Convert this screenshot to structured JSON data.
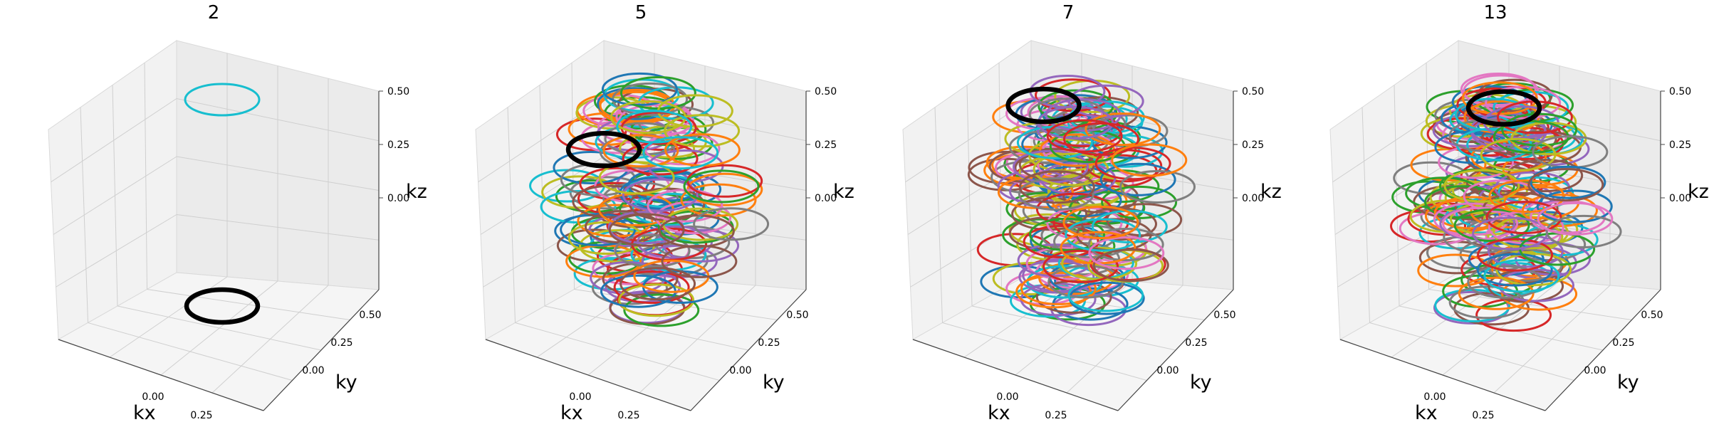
{
  "chart_data": [
    {
      "type": "3d-ring-scatter",
      "title": "2",
      "xlabel": "kx",
      "ylabel": "ky",
      "zlabel": "kz",
      "xticks": [
        "0.00",
        "0.25"
      ],
      "yticks": [
        "0.00",
        "0.25",
        "0.50"
      ],
      "zticks": [
        "0.00",
        "0.25",
        "0.50"
      ],
      "xlim": [
        -0.5,
        0.5
      ],
      "ylim": [
        -0.5,
        0.5
      ],
      "zlim": [
        -0.5,
        0.5
      ],
      "grid": true,
      "ring_count": 2,
      "highlight_ring": {
        "kx": 0.0,
        "ky": 0.0,
        "kz": -0.5,
        "color": "#000000"
      },
      "rings": [
        {
          "kx": 0.0,
          "ky": 0.0,
          "kz": 0.5,
          "color": "#17becf"
        }
      ]
    },
    {
      "type": "3d-ring-scatter",
      "title": "5",
      "xlabel": "kx",
      "ylabel": "ky",
      "zlabel": "kz",
      "xticks": [
        "0.00",
        "0.25"
      ],
      "yticks": [
        "0.00",
        "0.25",
        "0.50"
      ],
      "zticks": [
        "0.00",
        "0.25",
        "0.50"
      ],
      "xlim": [
        -0.5,
        0.5
      ],
      "ylim": [
        -0.5,
        0.5
      ],
      "zlim": [
        -0.5,
        0.5
      ],
      "grid": true,
      "ring_count": 125,
      "highlight_ring": {
        "kx": -0.4,
        "ky": 0.0,
        "kz": 0.2,
        "color": "#000000"
      }
    },
    {
      "type": "3d-ring-scatter",
      "title": "7",
      "xlabel": "kx",
      "ylabel": "ky",
      "zlabel": "kz",
      "xticks": [
        "0.00",
        "0.25"
      ],
      "yticks": [
        "0.00",
        "0.25",
        "0.50"
      ],
      "zticks": [
        "0.00",
        "0.25",
        "0.50"
      ],
      "xlim": [
        -0.5,
        0.5
      ],
      "ylim": [
        -0.5,
        0.5
      ],
      "zlim": [
        -0.5,
        0.5
      ],
      "grid": true,
      "ring_count": 150,
      "highlight_ring": {
        "kx": -0.29,
        "ky": 0.0,
        "kz": 0.43,
        "color": "#000000"
      }
    },
    {
      "type": "3d-ring-scatter",
      "title": "13",
      "xlabel": "kx",
      "ylabel": "ky",
      "zlabel": "kz",
      "xticks": [
        "0.00",
        "0.25"
      ],
      "yticks": [
        "0.00",
        "0.25",
        "0.50"
      ],
      "zticks": [
        "0.00",
        "0.25",
        "0.50"
      ],
      "xlim": [
        -0.5,
        0.5
      ],
      "ylim": [
        -0.5,
        0.5
      ],
      "zlim": [
        -0.5,
        0.5
      ],
      "grid": true,
      "ring_count": 160,
      "highlight_ring": {
        "kx": 0.0,
        "ky": 0.0,
        "kz": 0.46,
        "color": "#000000"
      }
    }
  ],
  "palette": [
    "#1f77b4",
    "#ff7f0e",
    "#2ca02c",
    "#d62728",
    "#9467bd",
    "#8c564b",
    "#e377c2",
    "#7f7f7f",
    "#bcbd22",
    "#17becf"
  ]
}
